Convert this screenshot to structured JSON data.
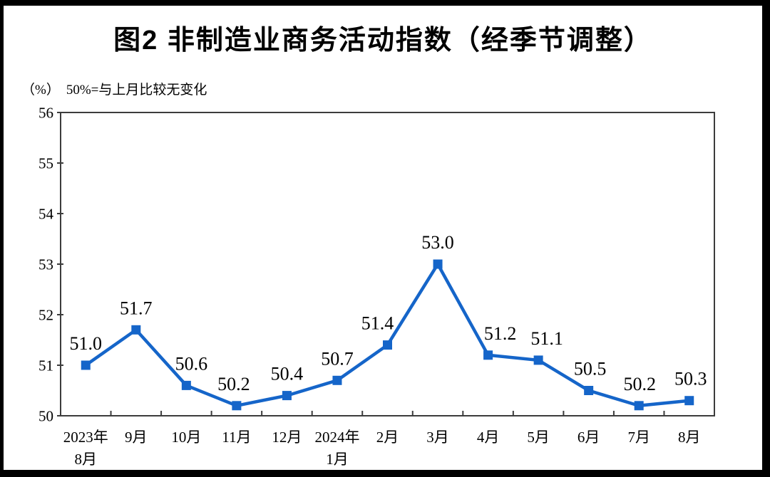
{
  "page": {
    "frame_color": "#000000",
    "canvas_color": "#ffffff"
  },
  "header": {
    "title": "图2 非制造业商务活动指数（经季节调整）",
    "unit_label": "（%）",
    "note": "50%=与上月比较无变化"
  },
  "chart_data": {
    "type": "line",
    "title": "图2 非制造业商务活动指数（经季节调整）",
    "unit": "（%）",
    "subtitle_note": "50%=与上月比较无变化",
    "categories": [
      "2023年|8月",
      "9月",
      "10月",
      "11月",
      "12月",
      "2024年|1月",
      "2月",
      "3月",
      "4月",
      "5月",
      "6月",
      "7月",
      "8月"
    ],
    "values": [
      51.0,
      51.7,
      50.6,
      50.2,
      50.4,
      50.7,
      51.4,
      53.0,
      51.2,
      51.1,
      50.5,
      50.2,
      50.3
    ],
    "data_labels": [
      "51.0",
      "51.7",
      "50.6",
      "50.2",
      "50.4",
      "50.7",
      "51.4",
      "53.0",
      "51.2",
      "51.1",
      "50.5",
      "50.2",
      "50.3"
    ],
    "label_dx": [
      0,
      0,
      7,
      -4,
      0,
      0,
      -14,
      0,
      17,
      12,
      2,
      1,
      2
    ],
    "ylim": [
      50,
      56
    ],
    "yticks": [
      50,
      51,
      52,
      53,
      54,
      55,
      56
    ],
    "grid": false,
    "legend": "none",
    "marker": "square",
    "line_color": "#1565c9",
    "axis_color": "#3c3c3c",
    "label_color": "#000000"
  }
}
